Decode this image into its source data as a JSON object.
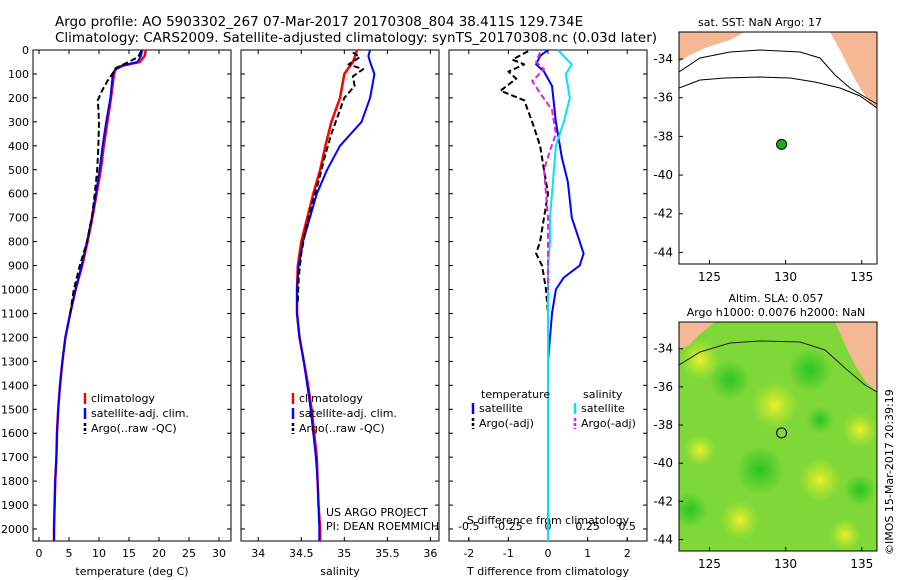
{
  "header": {
    "line1": "Argo profile: AO 5903302_267 07-Mar-2017 20170308_804 38.411S 129.734E",
    "line2": "Climatology: CARS2009. Satellite-adjusted climatology: synTS_20170308.nc (0.03d later)"
  },
  "colors": {
    "climatology": "#ff0000",
    "satellite": "#0000ff",
    "argo": "#000000",
    "sal_satellite": "#00e5f5",
    "sal_argo": "#e020e0",
    "land": "#f5b894",
    "marker": "#22aa22"
  },
  "chart_data": [
    {
      "type": "line",
      "id": "temperature",
      "xlabel": "temperature (deg C)",
      "xlim": [
        -1,
        32
      ],
      "ylim": [
        2050,
        0
      ],
      "xticks": [
        0,
        5,
        10,
        15,
        20,
        25,
        30
      ],
      "yticks": [
        0,
        100,
        200,
        300,
        400,
        500,
        600,
        700,
        800,
        900,
        1000,
        1100,
        1200,
        1300,
        1400,
        1500,
        1600,
        1700,
        1800,
        1900,
        2000
      ],
      "series": [
        {
          "name": "climatology",
          "color": "#ff0000",
          "dash": "",
          "width": 2.5,
          "points": [
            [
              17.8,
              0
            ],
            [
              17.6,
              25
            ],
            [
              16.8,
              50
            ],
            [
              14.0,
              65
            ],
            [
              12.8,
              80
            ],
            [
              12.5,
              100
            ],
            [
              12.0,
              200
            ],
            [
              11.4,
              300
            ],
            [
              10.8,
              400
            ],
            [
              10.3,
              500
            ],
            [
              9.6,
              600
            ],
            [
              8.9,
              700
            ],
            [
              8.1,
              800
            ],
            [
              7.2,
              900
            ],
            [
              6.1,
              1000
            ],
            [
              5.2,
              1100
            ],
            [
              4.4,
              1200
            ],
            [
              3.9,
              1300
            ],
            [
              3.5,
              1400
            ],
            [
              3.2,
              1500
            ],
            [
              3.0,
              1600
            ],
            [
              2.9,
              1700
            ],
            [
              2.7,
              1800
            ],
            [
              2.6,
              1900
            ],
            [
              2.5,
              2000
            ],
            [
              2.5,
              2050
            ]
          ]
        },
        {
          "name": "satellite-adj. clim.",
          "color": "#0000ff",
          "dash": "",
          "width": 2,
          "points": [
            [
              17.2,
              0
            ],
            [
              17.0,
              25
            ],
            [
              16.4,
              50
            ],
            [
              13.8,
              65
            ],
            [
              12.7,
              80
            ],
            [
              12.3,
              100
            ],
            [
              11.9,
              200
            ],
            [
              11.2,
              300
            ],
            [
              10.6,
              400
            ],
            [
              10.1,
              500
            ],
            [
              9.5,
              600
            ],
            [
              8.8,
              700
            ],
            [
              8.0,
              800
            ],
            [
              7.1,
              900
            ],
            [
              6.1,
              1000
            ],
            [
              5.2,
              1100
            ],
            [
              4.4,
              1200
            ],
            [
              3.9,
              1300
            ],
            [
              3.5,
              1400
            ],
            [
              3.2,
              1500
            ],
            [
              3.0,
              1600
            ],
            [
              2.9,
              1700
            ],
            [
              2.7,
              1800
            ],
            [
              2.6,
              1900
            ],
            [
              2.5,
              2000
            ],
            [
              2.5,
              2050
            ]
          ]
        },
        {
          "name": "Argo(..raw -QC)",
          "color": "#000000",
          "dash": "6,3",
          "width": 2,
          "points": [
            [
              17.0,
              5
            ],
            [
              16.5,
              30
            ],
            [
              14.5,
              55
            ],
            [
              12.8,
              75
            ],
            [
              12.2,
              100
            ],
            [
              11.4,
              130
            ],
            [
              10.5,
              170
            ],
            [
              9.8,
              210
            ],
            [
              9.9,
              250
            ],
            [
              10.0,
              300
            ],
            [
              9.9,
              400
            ],
            [
              9.7,
              500
            ],
            [
              9.3,
              600
            ],
            [
              8.8,
              700
            ],
            [
              8.0,
              800
            ],
            [
              6.8,
              900
            ],
            [
              5.8,
              1000
            ],
            [
              5.2,
              1100
            ]
          ]
        }
      ],
      "legend": [
        "climatology",
        "satellite-adj. clim.",
        "Argo(..raw -QC)"
      ]
    },
    {
      "type": "line",
      "id": "salinity",
      "xlabel": "salinity",
      "xlim": [
        33.8,
        36.1
      ],
      "ylim": [
        2050,
        0
      ],
      "xticks": [
        34,
        34.5,
        35,
        35.5,
        36
      ],
      "xtick_labels": [
        "34",
        "34.5",
        "35",
        "35.5",
        "36"
      ],
      "series": [
        {
          "name": "climatology",
          "color": "#ff0000",
          "dash": "",
          "width": 2.5,
          "points": [
            [
              35.15,
              0
            ],
            [
              35.1,
              50
            ],
            [
              35.0,
              100
            ],
            [
              34.95,
              200
            ],
            [
              34.85,
              300
            ],
            [
              34.78,
              400
            ],
            [
              34.72,
              500
            ],
            [
              34.64,
              600
            ],
            [
              34.57,
              700
            ],
            [
              34.5,
              800
            ],
            [
              34.46,
              900
            ],
            [
              34.45,
              1000
            ],
            [
              34.45,
              1100
            ],
            [
              34.48,
              1200
            ],
            [
              34.53,
              1300
            ],
            [
              34.58,
              1400
            ],
            [
              34.62,
              1500
            ],
            [
              34.65,
              1600
            ],
            [
              34.68,
              1700
            ],
            [
              34.69,
              1800
            ],
            [
              34.7,
              1900
            ],
            [
              34.72,
              2000
            ],
            [
              34.72,
              2050
            ]
          ]
        },
        {
          "name": "satellite-adj. clim.",
          "color": "#0000ff",
          "dash": "",
          "width": 2,
          "points": [
            [
              35.3,
              0
            ],
            [
              35.28,
              25
            ],
            [
              35.3,
              50
            ],
            [
              35.35,
              100
            ],
            [
              35.3,
              200
            ],
            [
              35.2,
              300
            ],
            [
              34.95,
              400
            ],
            [
              34.8,
              500
            ],
            [
              34.68,
              600
            ],
            [
              34.6,
              700
            ],
            [
              34.52,
              800
            ],
            [
              34.47,
              900
            ],
            [
              34.45,
              1000
            ],
            [
              34.45,
              1100
            ],
            [
              34.48,
              1200
            ],
            [
              34.53,
              1300
            ],
            [
              34.57,
              1400
            ],
            [
              34.61,
              1500
            ],
            [
              34.64,
              1600
            ],
            [
              34.67,
              1700
            ],
            [
              34.69,
              1800
            ],
            [
              34.7,
              1900
            ],
            [
              34.71,
              2000
            ],
            [
              34.71,
              2050
            ]
          ]
        },
        {
          "name": "Argo(..raw -QC)",
          "color": "#000000",
          "dash": "6,3",
          "width": 2,
          "points": [
            [
              35.1,
              10
            ],
            [
              35.18,
              30
            ],
            [
              35.05,
              60
            ],
            [
              35.22,
              80
            ],
            [
              35.1,
              110
            ],
            [
              35.12,
              150
            ],
            [
              35.0,
              200
            ],
            [
              34.92,
              280
            ],
            [
              34.85,
              350
            ],
            [
              34.77,
              450
            ],
            [
              34.7,
              550
            ],
            [
              34.62,
              650
            ],
            [
              34.55,
              750
            ],
            [
              34.5,
              850
            ],
            [
              34.47,
              950
            ],
            [
              34.46,
              1050
            ]
          ]
        }
      ],
      "legend": [
        "climatology",
        "satellite-adj. clim.",
        "Argo(..raw -QC)"
      ]
    },
    {
      "type": "line",
      "id": "difference",
      "xlabel": "T difference from climatology",
      "xlabel_top": "S difference from climatology",
      "xlim": [
        -2.5,
        2.5
      ],
      "ylim": [
        2050,
        0
      ],
      "xticks": [
        -2,
        -1,
        0,
        1,
        2
      ],
      "top_ticks": [
        -0.5,
        -0.25,
        0,
        0.25,
        0.5
      ],
      "top_tick_labels": [
        "-0.5",
        "-0.25",
        "0",
        "0.25",
        "0.5"
      ],
      "series": [
        {
          "name": "temperature satellite",
          "color": "#0000ff",
          "dash": "",
          "width": 2,
          "points": [
            [
              0,
              0
            ],
            [
              -0.2,
              25
            ],
            [
              -0.3,
              60
            ],
            [
              -0.1,
              90
            ],
            [
              0.1,
              150
            ],
            [
              0.2,
              300
            ],
            [
              0.35,
              450
            ],
            [
              0.5,
              550
            ],
            [
              0.6,
              700
            ],
            [
              0.8,
              800
            ],
            [
              0.9,
              850
            ],
            [
              0.8,
              900
            ],
            [
              0.4,
              950
            ],
            [
              0.2,
              1000
            ],
            [
              0.1,
              1100
            ],
            [
              0,
              1300
            ],
            [
              0,
              2050
            ]
          ]
        },
        {
          "name": "temperature Argo(-adj)",
          "color": "#000000",
          "dash": "6,3",
          "width": 2,
          "points": [
            [
              -0.5,
              5
            ],
            [
              -0.9,
              40
            ],
            [
              -0.6,
              60
            ],
            [
              -1.0,
              90
            ],
            [
              -0.8,
              120
            ],
            [
              -1.2,
              170
            ],
            [
              -0.6,
              210
            ],
            [
              -0.4,
              300
            ],
            [
              -0.2,
              400
            ],
            [
              -0.1,
              500
            ],
            [
              0,
              600
            ],
            [
              -0.1,
              700
            ],
            [
              -0.2,
              800
            ],
            [
              -0.3,
              850
            ],
            [
              -0.15,
              900
            ],
            [
              -0.05,
              1000
            ],
            [
              0,
              1100
            ]
          ]
        },
        {
          "name": "salinity satellite",
          "color": "#00e5f5",
          "dash": "",
          "width": 2,
          "points": [
            [
              0.25,
              0
            ],
            [
              0.6,
              60
            ],
            [
              0.45,
              100
            ],
            [
              0.55,
              200
            ],
            [
              0.4,
              300
            ],
            [
              0.2,
              400
            ],
            [
              0.15,
              500
            ],
            [
              0.1,
              600
            ],
            [
              0.05,
              700
            ],
            [
              0.05,
              800
            ],
            [
              0,
              900
            ],
            [
              0,
              1000
            ],
            [
              0,
              2050
            ]
          ]
        },
        {
          "name": "salinity Argo(-adj)",
          "color": "#e020e0",
          "dash": "6,3",
          "width": 2,
          "points": [
            [
              -0.2,
              10
            ],
            [
              -0.3,
              50
            ],
            [
              -0.1,
              80
            ],
            [
              -0.4,
              130
            ],
            [
              -0.2,
              180
            ],
            [
              0.1,
              250
            ],
            [
              0.2,
              350
            ],
            [
              0.05,
              420
            ],
            [
              -0.1,
              500
            ],
            [
              -0.05,
              600
            ],
            [
              0,
              700
            ],
            [
              0,
              900
            ],
            [
              0,
              1000
            ]
          ]
        }
      ],
      "legend_headers": [
        "temperature",
        "salinity"
      ],
      "legend": [
        "satellite",
        "Argo(-adj)",
        "satellite",
        "Argo(-adj)"
      ]
    },
    {
      "type": "map",
      "id": "sst_map",
      "title": "sat. SST: NaN Argo: 17",
      "xlim": [
        123,
        136
      ],
      "ylim": [
        -44.6,
        -32.6
      ],
      "xticks": [
        125,
        130,
        135
      ],
      "yticks": [
        -34,
        -36,
        -38,
        -40,
        -42,
        -44
      ],
      "marker": [
        129.734,
        -38.411
      ]
    },
    {
      "type": "map",
      "id": "sla_map",
      "title_line1": "Altim. SLA: 0.057",
      "title_line2": "Argo h1000: 0.0076 h2000: NaN",
      "xlim": [
        123,
        136
      ],
      "ylim": [
        -44.6,
        -32.6
      ],
      "xticks": [
        125,
        130,
        135
      ],
      "yticks": [
        -34,
        -36,
        -38,
        -40,
        -42,
        -44
      ],
      "marker": [
        129.734,
        -38.411
      ]
    }
  ],
  "annotations": {
    "project_line1": "US ARGO PROJECT",
    "project_line2": "PI: DEAN ROEMMICH",
    "side_label": "©IMOS 15-Mar-2017 20:39:19"
  }
}
